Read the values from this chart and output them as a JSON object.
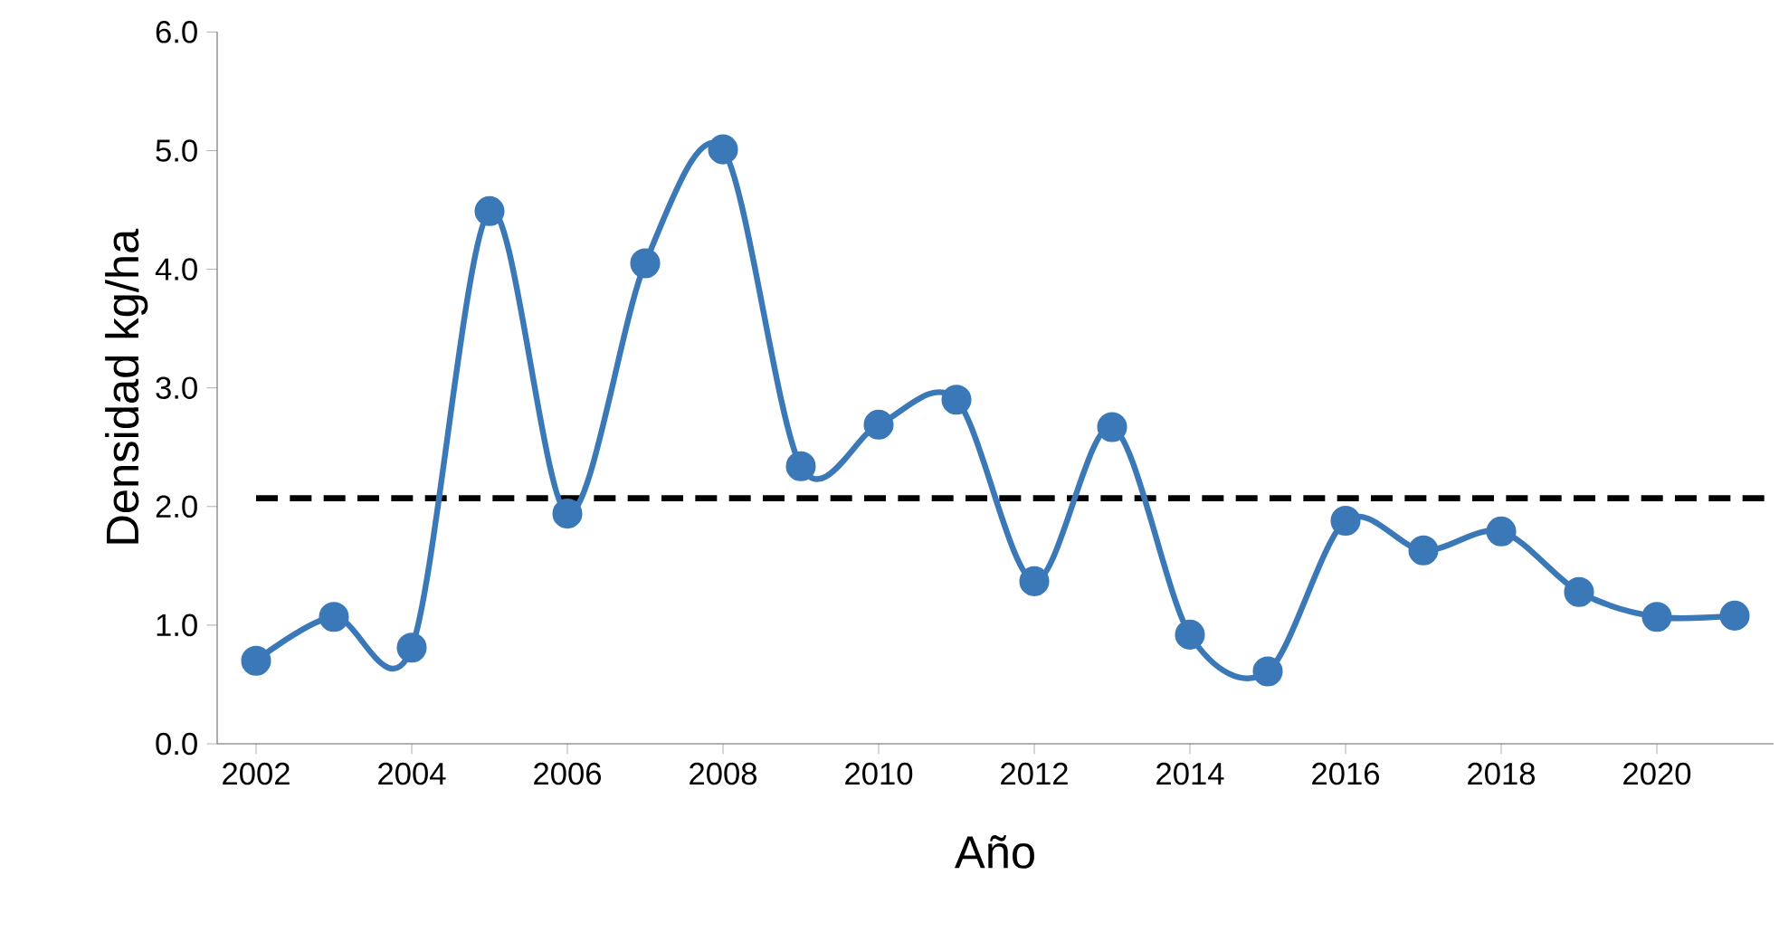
{
  "chart_data": {
    "type": "line",
    "xlabel": "Año",
    "ylabel": "Densidad kg/ha",
    "x": [
      2002,
      2003,
      2004,
      2005,
      2006,
      2007,
      2008,
      2009,
      2010,
      2011,
      2012,
      2013,
      2014,
      2015,
      2016,
      2017,
      2018,
      2019,
      2020,
      2021
    ],
    "series": [
      {
        "color": "#3a78b8",
        "values": [
          0.7,
          1.07,
          0.81,
          4.49,
          1.94,
          4.05,
          5.01,
          2.34,
          2.69,
          2.9,
          1.37,
          2.67,
          0.92,
          0.61,
          1.88,
          1.63,
          1.79,
          1.28,
          1.07,
          1.08
        ]
      }
    ],
    "xlim": [
      2001.5,
      2021.5
    ],
    "xticks": [
      2002,
      2004,
      2006,
      2008,
      2010,
      2012,
      2014,
      2016,
      2018,
      2020
    ],
    "ylim": [
      0,
      6
    ],
    "yticks": [
      {
        "value": 0,
        "label": "0.0"
      },
      {
        "value": 1,
        "label": "1.0"
      },
      {
        "value": 2,
        "label": "2.0"
      },
      {
        "value": 3,
        "label": "3.0"
      },
      {
        "value": 4,
        "label": "4.0"
      },
      {
        "value": 5,
        "label": "5.0"
      },
      {
        "value": 6,
        "label": "6.0"
      }
    ],
    "ref_lines": [
      {
        "axis": "y",
        "value": 2.07,
        "color": "#000000",
        "line_style": "dashed"
      }
    ],
    "marker": "circle",
    "line_style": "solid",
    "grid": false
  }
}
